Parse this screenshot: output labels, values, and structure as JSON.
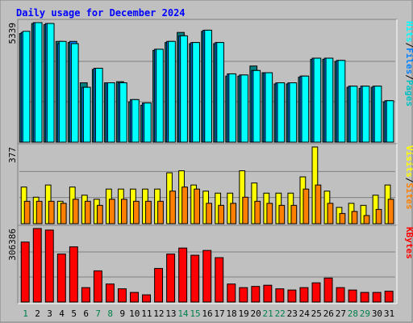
{
  "chart_data": {
    "type": "bar",
    "title": "Daily usage for December 2024",
    "categories": [
      "1",
      "2",
      "3",
      "4",
      "5",
      "6",
      "7",
      "8",
      "9",
      "10",
      "11",
      "12",
      "13",
      "14",
      "15",
      "16",
      "17",
      "18",
      "19",
      "20",
      "21",
      "22",
      "23",
      "24",
      "25",
      "26",
      "27",
      "28",
      "29",
      "30",
      "31"
    ],
    "weekend_days": [
      "1",
      "7",
      "8",
      "14",
      "15",
      "21",
      "22",
      "28",
      "29"
    ],
    "panels": [
      {
        "id": "hits",
        "ymax_label": "5339",
        "ymax": 5339,
        "legend": [
          "Pages",
          "/",
          "Files",
          "/",
          "Hits"
        ],
        "series": [
          {
            "name": "Hits",
            "color": "#00ffff",
            "values": [
              4950,
              5339,
              5300,
              4500,
              4400,
              2450,
              3300,
              2650,
              2650,
              1900,
              1750,
              4150,
              4500,
              4750,
              4450,
              5000,
              4450,
              3050,
              3000,
              3200,
              3100,
              2650,
              2650,
              2950,
              3750,
              3750,
              3650,
              2500,
              2500,
              2500,
              1850
            ]
          },
          {
            "name": "Files",
            "color": "#0080ff",
            "values": [
              4900,
              5339,
              5300,
              4400,
              4500,
              2450,
              3300,
              2650,
              2650,
              1900,
              1750,
              4150,
              4500,
              4750,
              4450,
              5000,
              4450,
              3050,
              3000,
              3200,
              3100,
              2650,
              2650,
              2950,
              3750,
              3750,
              3650,
              2500,
              2500,
              2500,
              1850
            ]
          },
          {
            "name": "Pages",
            "color": "#008080",
            "values": [
              4850,
              5300,
              5250,
              4500,
              4450,
              2650,
              3250,
              2650,
              2700,
              1800,
              1650,
              4100,
              4450,
              4900,
              4400,
              4950,
              4400,
              2950,
              2950,
              3400,
              3100,
              2600,
              2600,
              2900,
              3700,
              3700,
              3600,
              2450,
              2400,
              2450,
              1800
            ]
          }
        ]
      },
      {
        "id": "visits",
        "ymax_label": "377",
        "ymax": 377,
        "legend": [
          "Sites",
          "/",
          "Visits"
        ],
        "series": [
          {
            "name": "Visits",
            "color": "#ffff00",
            "values": [
              180,
              130,
              190,
              110,
              180,
              140,
              120,
              170,
              170,
              170,
              170,
              170,
              250,
              260,
              190,
              160,
              150,
              150,
              260,
              200,
              150,
              150,
              150,
              230,
              377,
              160,
              80,
              100,
              90,
              140,
              190
            ]
          },
          {
            "name": "Sites",
            "color": "#ff8000",
            "values": [
              110,
              110,
              110,
              100,
              120,
              110,
              90,
              120,
              120,
              110,
              110,
              110,
              160,
              180,
              170,
              100,
              90,
              100,
              130,
              110,
              100,
              90,
              90,
              170,
              190,
              100,
              50,
              60,
              40,
              70,
              120
            ]
          }
        ]
      },
      {
        "id": "kbytes",
        "ymax_label": "306386",
        "ymax": 306386,
        "legend": [
          "KBytes"
        ],
        "series": [
          {
            "name": "KBytes",
            "color": "#ff0000",
            "values": [
              250000,
              306386,
              300000,
              200000,
              230000,
              60000,
              130000,
              75000,
              55000,
              40000,
              30000,
              140000,
              200000,
              225000,
              195000,
              215000,
              185000,
              75000,
              60000,
              65000,
              70000,
              55000,
              50000,
              60000,
              80000,
              100000,
              60000,
              50000,
              40000,
              40000,
              45000
            ]
          }
        ]
      }
    ],
    "colors": {
      "background": "#c0c0c0",
      "title": "#0000ff",
      "weekday_label": "#000000",
      "weekend_label": "#00804d"
    }
  }
}
